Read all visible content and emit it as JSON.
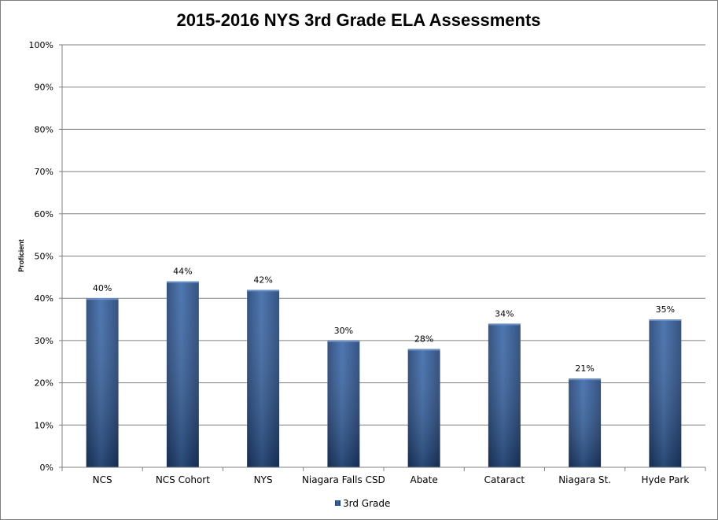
{
  "chart_data": {
    "type": "bar",
    "title": "2015-2016 NYS 3rd Grade ELA Assessments",
    "xlabel": "",
    "ylabel": "Proficient",
    "categories": [
      "NCS",
      "NCS Cohort",
      "NYS",
      "Niagara Falls CSD",
      "Abate",
      "Cataract",
      "Niagara St.",
      "Hyde Park"
    ],
    "series": [
      {
        "name": "3rd Grade",
        "values": [
          40,
          44,
          42,
          30,
          28,
          34,
          21,
          35
        ],
        "data_labels": [
          "40%",
          "44%",
          "42%",
          "30%",
          "28%",
          "34%",
          "21%",
          "35%"
        ]
      }
    ],
    "ylim": [
      0,
      100
    ],
    "yticks": [
      0,
      10,
      20,
      30,
      40,
      50,
      60,
      70,
      80,
      90,
      100
    ],
    "ytick_labels": [
      "0%",
      "10%",
      "20%",
      "30%",
      "40%",
      "50%",
      "60%",
      "70%",
      "80%",
      "90%",
      "100%"
    ],
    "grid": true,
    "legend_position": "bottom",
    "colors": {
      "bar": "#3a68a8",
      "bar_dark": "#1f3f73",
      "gridline": "#808080",
      "axis": "#808080"
    }
  }
}
